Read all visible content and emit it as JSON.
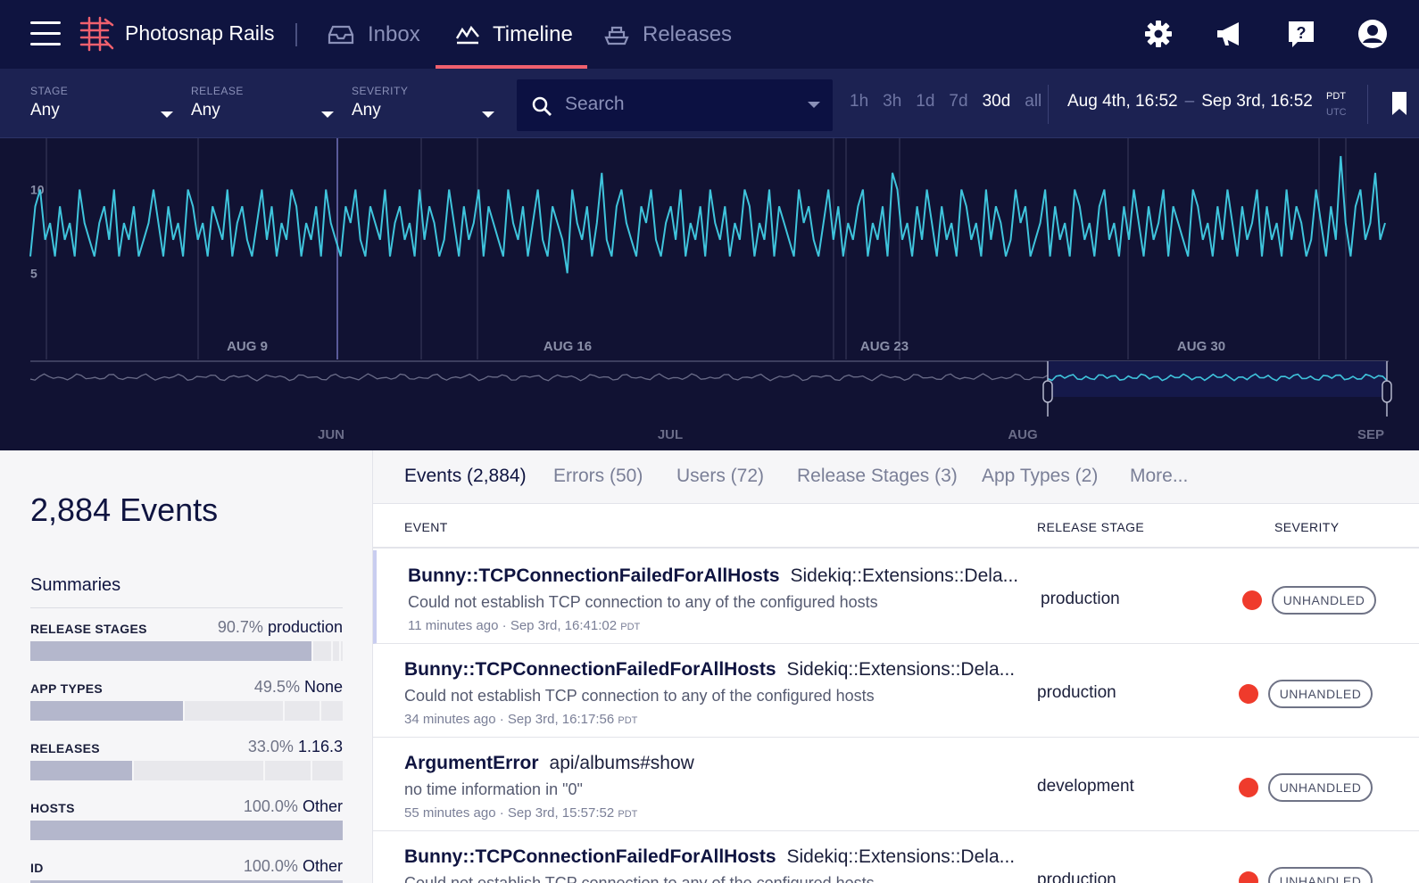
{
  "app": {
    "name": "Photosnap Rails"
  },
  "nav": {
    "items": [
      {
        "label": "Inbox",
        "icon": "inbox-icon"
      },
      {
        "label": "Timeline",
        "icon": "timeline-icon",
        "active": true
      },
      {
        "label": "Releases",
        "icon": "ship-icon"
      }
    ],
    "right_icons": [
      "gear-icon",
      "megaphone-icon",
      "help-icon",
      "user-icon"
    ]
  },
  "filters": {
    "stage": {
      "label": "STAGE",
      "value": "Any"
    },
    "release": {
      "label": "RELEASE",
      "value": "Any"
    },
    "severity": {
      "label": "SEVERITY",
      "value": "Any"
    },
    "search_placeholder": "Search",
    "ranges": [
      "1h",
      "3h",
      "1d",
      "7d",
      "30d",
      "all"
    ],
    "active_range": "30d",
    "date_from": "Aug 4th, 16:52",
    "date_sep": "–",
    "date_to": "Sep 3rd, 16:52",
    "tz_active": "PDT",
    "tz_other": "UTC"
  },
  "chart_data": {
    "type": "line",
    "y_ticks": [
      "10",
      "5"
    ],
    "x_labels": [
      "AUG 9",
      "AUG 16",
      "AUG 23",
      "AUG 30"
    ],
    "overview_labels": [
      "JUN",
      "JUL",
      "AUG",
      "SEP"
    ],
    "ylim": [
      0,
      12
    ],
    "color": "#3fc4dc",
    "values": [
      6,
      9,
      10,
      7,
      8,
      6,
      9,
      7,
      8,
      6,
      10,
      8,
      7,
      6,
      8,
      9,
      7,
      10,
      6,
      8,
      7,
      9,
      6,
      7,
      8,
      10,
      8,
      6,
      9,
      7,
      8,
      6,
      10,
      9,
      7,
      8,
      6,
      9,
      8,
      7,
      10,
      6,
      8,
      9,
      7,
      6,
      8,
      10,
      7,
      9,
      6,
      8,
      7,
      10,
      9,
      6,
      8,
      7,
      9,
      6,
      10,
      8,
      7,
      6,
      9,
      8,
      10,
      7,
      6,
      9,
      8,
      7,
      10,
      6,
      8,
      9,
      7,
      8,
      6,
      10,
      7,
      9,
      8,
      6,
      7,
      10,
      8,
      6,
      9,
      7,
      8,
      10,
      6,
      9,
      8,
      7,
      6,
      10,
      8,
      7,
      9,
      6,
      8,
      10,
      7,
      6,
      9,
      8,
      7,
      5,
      10,
      8,
      7,
      9,
      6,
      8,
      11,
      7,
      6,
      9,
      10,
      8,
      7,
      6,
      9,
      8,
      10,
      7,
      6,
      8,
      9,
      7,
      10,
      6,
      8,
      7,
      9,
      6,
      10,
      8,
      7,
      9,
      6,
      8,
      7,
      10,
      9,
      6,
      8,
      7,
      10,
      6,
      9,
      8,
      7,
      6,
      10,
      8,
      9,
      7,
      6,
      8,
      10,
      7,
      9,
      6,
      8,
      7,
      9,
      10,
      6,
      8,
      7,
      9,
      6,
      11,
      10,
      7,
      8,
      6,
      9,
      7,
      10,
      8,
      6,
      9,
      7,
      8,
      6,
      10,
      9,
      7,
      8,
      6,
      10,
      7,
      9,
      8,
      6,
      7,
      10,
      8,
      9,
      6,
      7,
      8,
      10,
      6,
      9,
      7,
      8,
      6,
      10,
      9,
      7,
      8,
      6,
      9,
      10,
      7,
      8,
      6,
      9,
      7,
      10,
      8,
      6,
      9,
      7,
      8,
      10,
      6,
      9,
      8,
      7,
      6,
      10,
      9,
      7,
      8,
      6,
      9,
      7,
      10,
      8,
      6,
      9,
      7,
      8,
      10,
      6,
      9,
      7,
      8,
      6,
      10,
      7,
      9,
      8,
      6,
      7,
      10,
      8,
      6,
      9,
      7,
      12,
      8,
      6,
      9,
      10,
      7,
      8,
      11,
      7,
      8
    ]
  },
  "summary": {
    "events_count": "2,884 Events",
    "title": "Summaries",
    "rows": [
      {
        "label": "RELEASE STAGES",
        "pct": "90.7%",
        "value": "production",
        "share": 0.907
      },
      {
        "label": "APP TYPES",
        "pct": "49.5%",
        "value": "None",
        "share": 0.495
      },
      {
        "label": "RELEASES",
        "pct": "33.0%",
        "value": "1.16.3",
        "share": 0.33
      },
      {
        "label": "HOSTS",
        "pct": "100.0%",
        "value": "Other",
        "share": 1.0
      },
      {
        "label": "ID",
        "pct": "100.0%",
        "value": "Other",
        "share": 1.0
      }
    ]
  },
  "tabs": [
    "Events (2,884)",
    "Errors (50)",
    "Users (72)",
    "Release Stages (3)",
    "App Types (2)",
    "More..."
  ],
  "table": {
    "headers": [
      "EVENT",
      "RELEASE STAGE",
      "SEVERITY"
    ],
    "rows": [
      {
        "error": "Bunny::TCPConnectionFailedForAllHosts",
        "context": "Sidekiq::Extensions::Dela...",
        "message": "Could not establish TCP connection to any of the configured hosts",
        "ago": "11 minutes ago",
        "time": "Sep 3rd, 16:41:02",
        "tz": "PDT",
        "stage": "production",
        "badge": "UNHANDLED",
        "severity_color": "#ef3b2c"
      },
      {
        "error": "Bunny::TCPConnectionFailedForAllHosts",
        "context": "Sidekiq::Extensions::Dela...",
        "message": "Could not establish TCP connection to any of the configured hosts",
        "ago": "34 minutes ago",
        "time": "Sep 3rd, 16:17:56",
        "tz": "PDT",
        "stage": "production",
        "badge": "UNHANDLED",
        "severity_color": "#ef3b2c"
      },
      {
        "error": "ArgumentError",
        "context": "api/albums#show",
        "message": "no time information in \"0\"",
        "ago": "55 minutes ago",
        "time": "Sep 3rd, 15:57:52",
        "tz": "PDT",
        "stage": "development",
        "badge": "UNHANDLED",
        "severity_color": "#ef3b2c"
      },
      {
        "error": "Bunny::TCPConnectionFailedForAllHosts",
        "context": "Sidekiq::Extensions::Dela...",
        "message": "Could not establish TCP connection to any of the configured hosts",
        "ago": "",
        "time": "",
        "tz": "",
        "stage": "production",
        "badge": "UNHANDLED",
        "severity_color": "#ef3b2c"
      }
    ]
  }
}
